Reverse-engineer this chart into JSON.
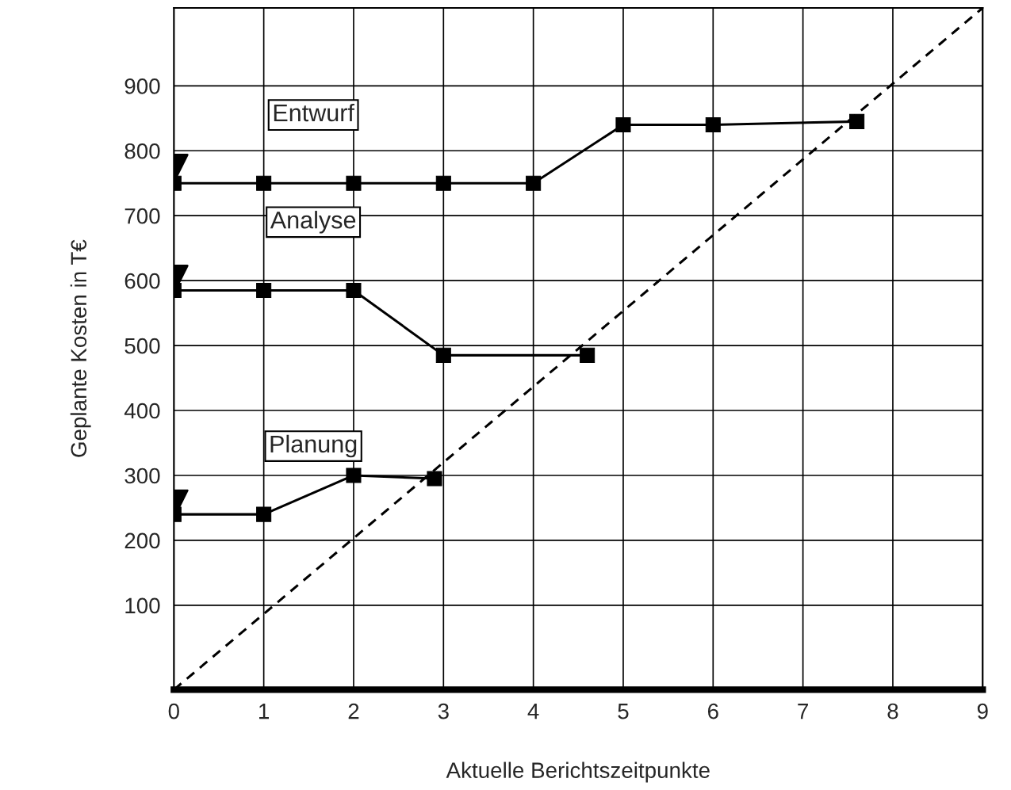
{
  "chart_data": {
    "type": "line",
    "xlabel": "Aktuelle Berichtszeitpunkte",
    "ylabel": "Geplante Kosten in T€",
    "xlim": [
      0,
      9
    ],
    "xticks": [
      0,
      1,
      2,
      3,
      4,
      5,
      6,
      7,
      8,
      9
    ],
    "ylim": [
      -30,
      1020
    ],
    "yticks": [
      100,
      200,
      300,
      400,
      500,
      600,
      700,
      800,
      900
    ],
    "grid": true,
    "legend": false,
    "marker": "square",
    "line_style": "solid",
    "series": [
      {
        "name": "Entwurf",
        "color": "#000000",
        "x": [
          0,
          1,
          2,
          3,
          4,
          5,
          6,
          7.6
        ],
        "values": [
          750,
          750,
          750,
          750,
          750,
          840,
          840,
          845
        ]
      },
      {
        "name": "Analyse",
        "color": "#000000",
        "x": [
          0,
          1,
          2,
          3,
          4.6
        ],
        "values": [
          585,
          585,
          585,
          485,
          485
        ]
      },
      {
        "name": "Planung",
        "color": "#000000",
        "x": [
          0,
          1,
          2,
          2.9
        ],
        "values": [
          240,
          240,
          300,
          295
        ]
      },
      {
        "type": "scatter",
        "marker": "triangle",
        "color": "#000000",
        "x": [
          0,
          0,
          0
        ],
        "values": [
          773,
          602,
          256
        ]
      },
      {
        "type": "line",
        "marker": "none",
        "line_style": "dashed",
        "color": "#000000",
        "x": [
          0,
          9
        ],
        "values": [
          -30,
          1020
        ]
      }
    ]
  }
}
